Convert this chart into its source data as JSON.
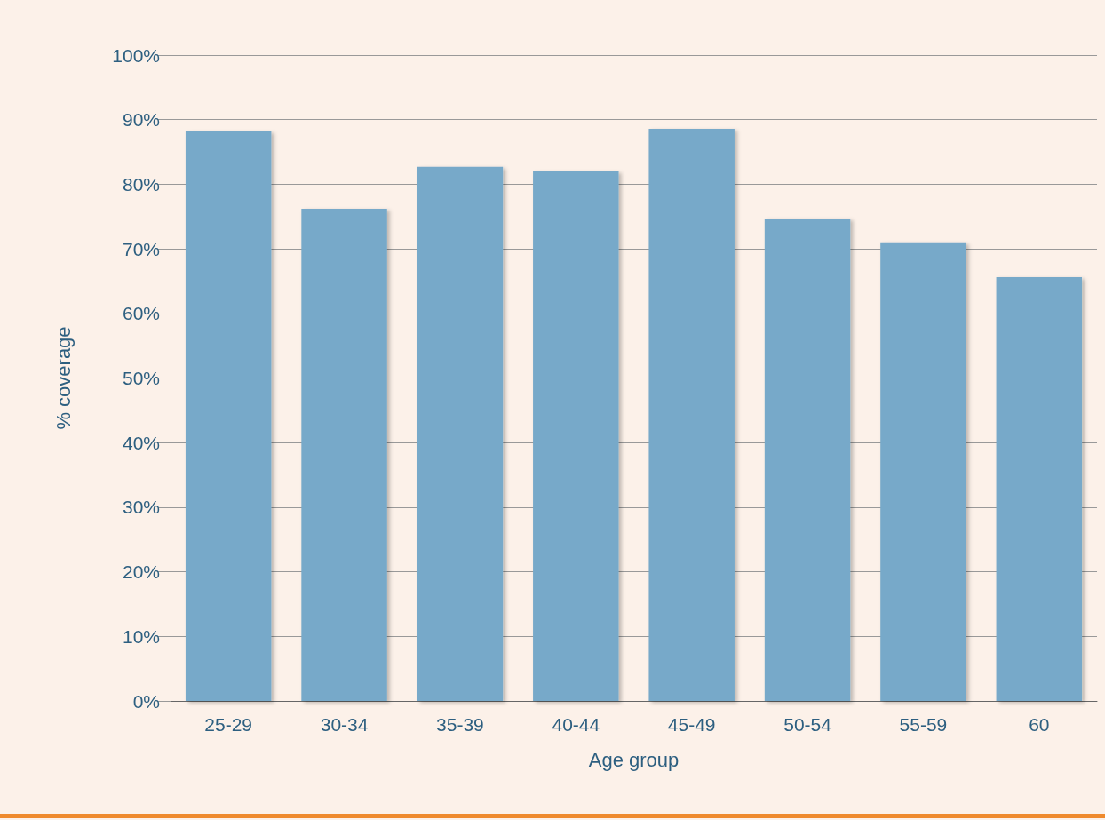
{
  "chart_data": {
    "type": "bar",
    "xlabel": "Age group",
    "ylabel": "% coverage",
    "categories": [
      "25-29",
      "30-34",
      "35-39",
      "40-44",
      "45-49",
      "50-54",
      "55-59",
      "60"
    ],
    "values": [
      88.2,
      76.2,
      82.7,
      82.0,
      88.6,
      74.7,
      71.0,
      65.6
    ],
    "color": "#77a9c9",
    "ylim": [
      0,
      100
    ],
    "yticks": [
      {
        "value": 0,
        "label": "0%"
      },
      {
        "value": 10,
        "label": "10%"
      },
      {
        "value": 20,
        "label": "20%"
      },
      {
        "value": 30,
        "label": "30%"
      },
      {
        "value": 40,
        "label": "40%"
      },
      {
        "value": 50,
        "label": "50%"
      },
      {
        "value": 60,
        "label": "60%"
      },
      {
        "value": 70,
        "label": "70%"
      },
      {
        "value": 80,
        "label": "80%"
      },
      {
        "value": 90,
        "label": "90%"
      },
      {
        "value": 100,
        "label": "100%"
      }
    ],
    "grid": "y"
  }
}
